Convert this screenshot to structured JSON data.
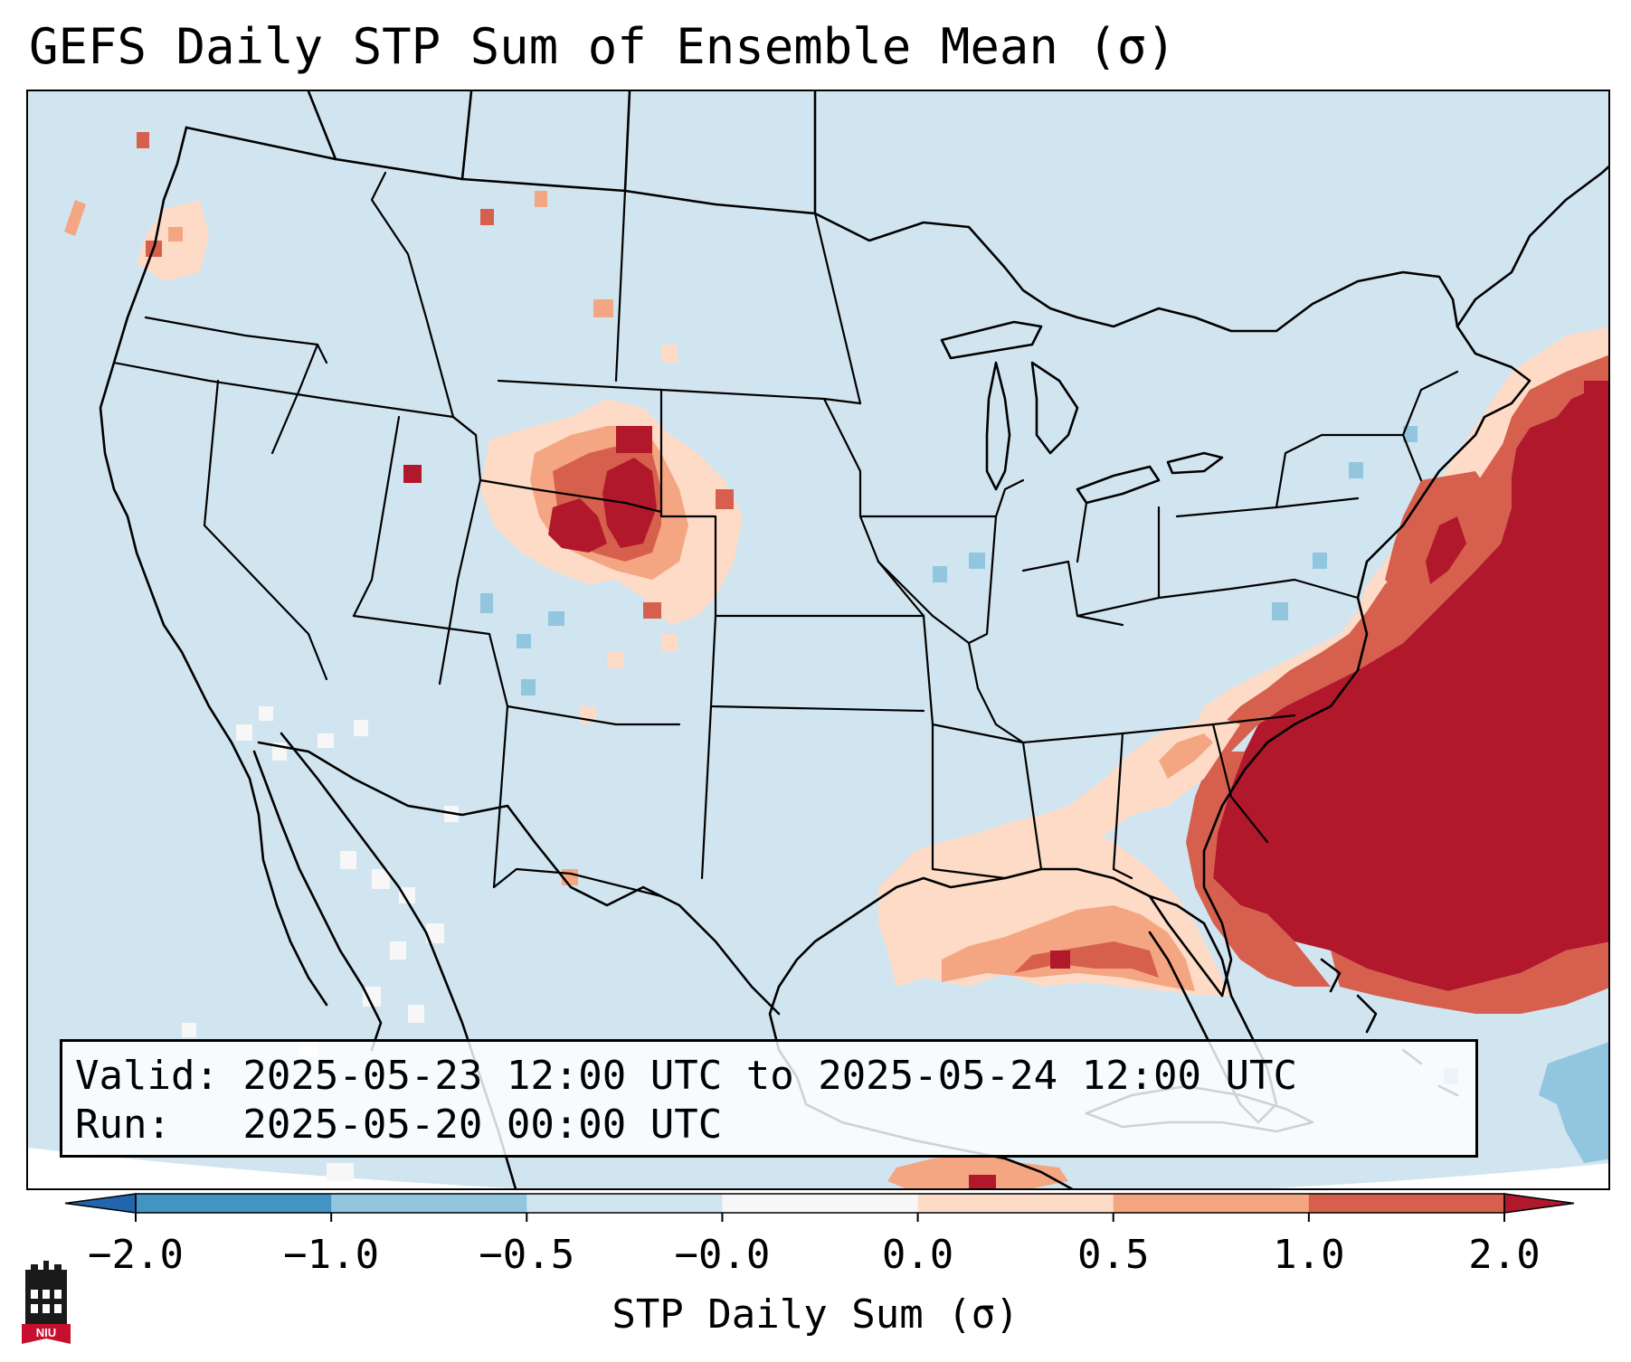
{
  "title": "GEFS Daily STP Sum of Ensemble Mean (σ)",
  "info": {
    "valid_line": "Valid: 2025-05-23 12:00 UTC to 2025-05-24 12:00 UTC",
    "run_line": "Run:   2025-05-20 00:00 UTC"
  },
  "colorbar": {
    "label": "STP Daily Sum (σ)",
    "levels": [
      "−2.0",
      "−1.0",
      "−0.5",
      "−0.0",
      "0.0",
      "0.5",
      "1.0",
      "2.0"
    ],
    "bin_colors": [
      "#4393c3",
      "#92c5de",
      "#d1e5f0",
      "#f7f7f7",
      "#fddbc7",
      "#f4a582",
      "#d6604d"
    ],
    "under_color": "#2166ac",
    "over_color": "#b2182b"
  },
  "map": {
    "background_color": "#d1e5f0",
    "offgrid_color": "#ffffff",
    "boundary_color": "#000000"
  },
  "logo": {
    "text": "NIU",
    "color": "#c8102e"
  }
}
